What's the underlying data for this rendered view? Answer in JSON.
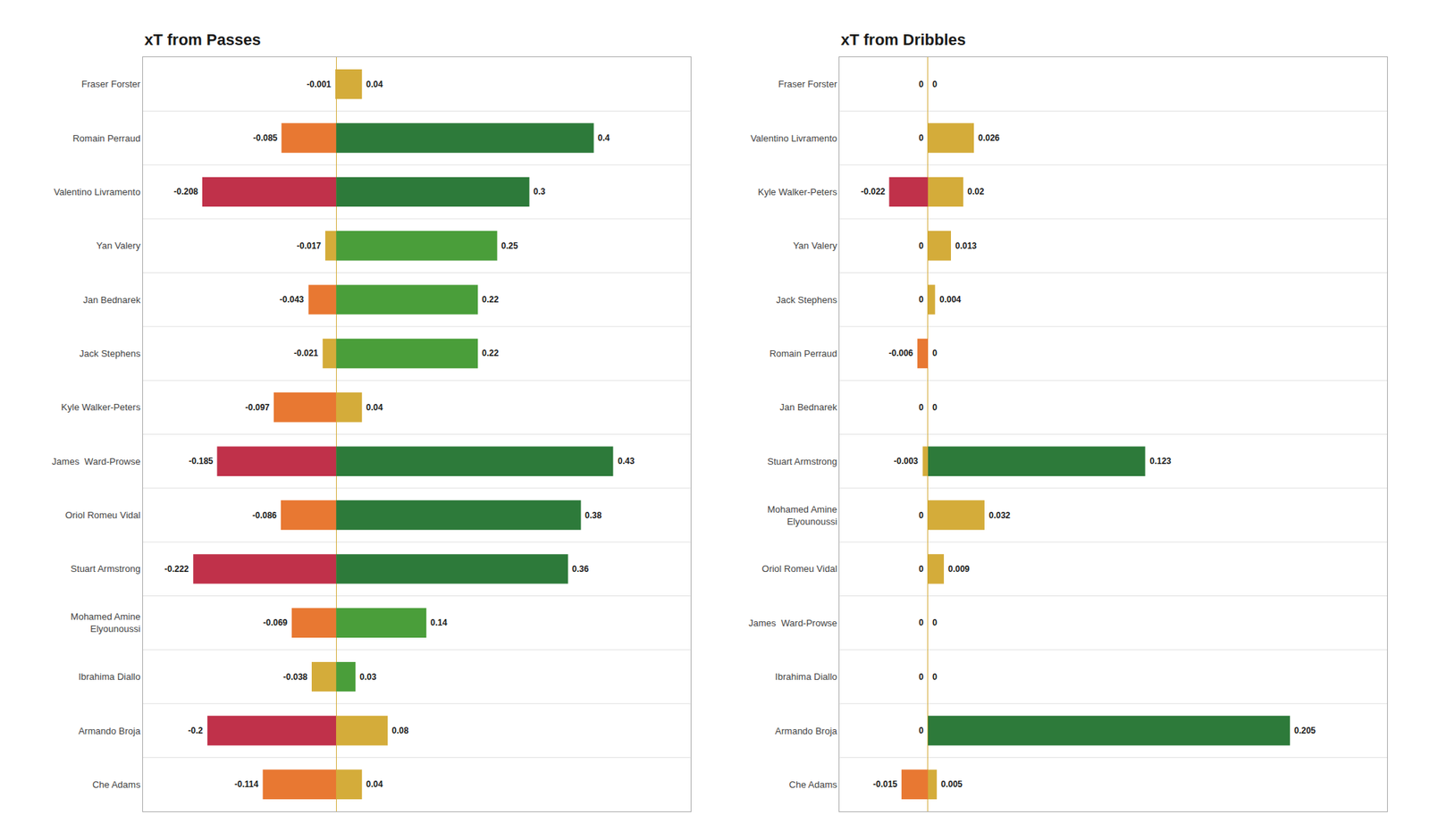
{
  "chart_data": [
    {
      "type": "bar",
      "orientation": "horizontal",
      "title": "xT from Passes",
      "categories": [
        "Fraser Forster",
        "Romain Perraud",
        "Valentino Livramento",
        "Yan Valery",
        "Jan Bednarek",
        "Jack Stephens",
        "Kyle Walker-Peters",
        "James  Ward-Prowse",
        "Oriol Romeu Vidal",
        "Stuart Armstrong",
        "Mohamed Amine\nElyounoussi",
        "Ibrahima Diallo",
        "Armando Broja",
        "Che Adams"
      ],
      "series": [
        {
          "values": [
            -0.001,
            -0.085,
            -0.208,
            -0.017,
            -0.043,
            -0.021,
            -0.097,
            -0.185,
            -0.086,
            -0.222,
            -0.069,
            -0.038,
            -0.2,
            -0.114
          ],
          "colors": [
            "#d4ac3a",
            "#e87832",
            "#c0314a",
            "#d4ac3a",
            "#e87832",
            "#d4ac3a",
            "#e87832",
            "#c0314a",
            "#e87832",
            "#c0314a",
            "#e87832",
            "#d4ac3a",
            "#c0314a",
            "#e87832"
          ]
        },
        {
          "values": [
            0.04,
            0.4,
            0.3,
            0.25,
            0.22,
            0.22,
            0.04,
            0.43,
            0.38,
            0.36,
            0.14,
            0.03,
            0.08,
            0.04
          ],
          "colors": [
            "#d4ac3a",
            "#2d7a3a",
            "#2d7a3a",
            "#4a9e3a",
            "#4a9e3a",
            "#4a9e3a",
            "#d4ac3a",
            "#2d7a3a",
            "#2d7a3a",
            "#2d7a3a",
            "#4a9e3a",
            "#4a9e3a",
            "#d4ac3a",
            "#d4ac3a"
          ]
        }
      ],
      "xlim": [
        -0.3,
        0.55
      ],
      "tick_labels": "y",
      "data_labels": true,
      "grid": false,
      "legend": "none"
    },
    {
      "type": "bar",
      "orientation": "horizontal",
      "title": "xT from Dribbles",
      "categories": [
        "Fraser Forster",
        "Valentino Livramento",
        "Kyle Walker-Peters",
        "Yan Valery",
        "Jack Stephens",
        "Romain Perraud",
        "Jan Bednarek",
        "Stuart Armstrong",
        "Mohamed Amine\nElyounoussi",
        "Oriol Romeu Vidal",
        "James  Ward-Prowse",
        "Ibrahima Diallo",
        "Armando Broja",
        "Che Adams"
      ],
      "series": [
        {
          "values": [
            0,
            0,
            -0.022,
            0,
            0,
            -0.006,
            0,
            -0.003,
            0,
            0,
            0,
            0,
            0,
            -0.015
          ],
          "colors": [
            "#d4ac3a",
            "#d4ac3a",
            "#c0314a",
            "#d4ac3a",
            "#d4ac3a",
            "#e87832",
            "#d4ac3a",
            "#d4ac3a",
            "#d4ac3a",
            "#d4ac3a",
            "#d4ac3a",
            "#d4ac3a",
            "#d4ac3a",
            "#e87832"
          ]
        },
        {
          "values": [
            0,
            0.026,
            0.02,
            0.013,
            0.004,
            0,
            0,
            0.123,
            0.032,
            0.009,
            0,
            0,
            0.205,
            0.005
          ],
          "colors": [
            "#d4ac3a",
            "#d4ac3a",
            "#d4ac3a",
            "#d4ac3a",
            "#d4ac3a",
            "#d4ac3a",
            "#d4ac3a",
            "#2d7a3a",
            "#d4ac3a",
            "#d4ac3a",
            "#d4ac3a",
            "#d4ac3a",
            "#2d7a3a",
            "#d4ac3a"
          ]
        }
      ],
      "xlim": [
        -0.05,
        0.26
      ],
      "tick_labels": "y",
      "data_labels": true,
      "grid": false,
      "legend": "none"
    }
  ]
}
